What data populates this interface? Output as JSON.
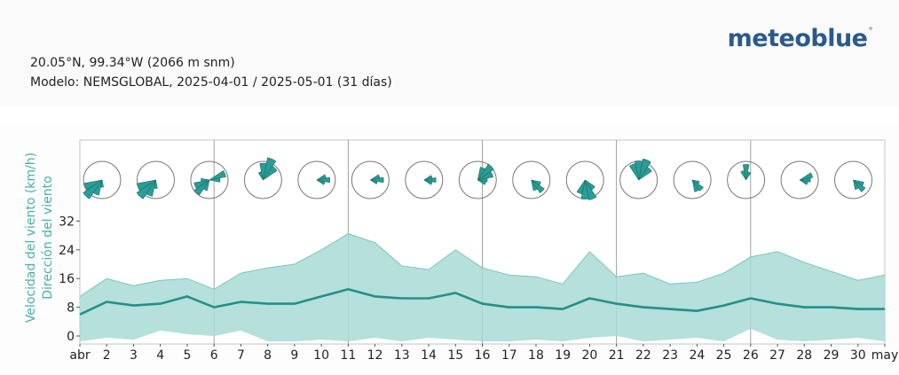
{
  "header": {
    "coordinates": "20.05°N, 99.34°W (2066 m snm)",
    "model": "Modelo: NEMSGLOBAL, 2025-04-01 / 2025-05-01 (31 días)",
    "logo_text": "meteoblue",
    "logo_mark": "°"
  },
  "colors": {
    "wind": "#2a9d96",
    "band": "#a8dad5",
    "line": "#248f89",
    "logo": "#2a5a8c",
    "ylabel": "#48b0a8"
  },
  "chart_data": {
    "type": "area",
    "ylabel": [
      "Velocidad del viento (km/h)",
      "Dirección del viento"
    ],
    "yticks": [
      0,
      8,
      16,
      24,
      32
    ],
    "ylim": [
      -2,
      34
    ],
    "grid": "vertical lines at days 6, 11, 16, 21, 26",
    "xtick_labels": [
      "abr",
      "2",
      "3",
      "4",
      "5",
      "6",
      "7",
      "8",
      "9",
      "10",
      "11",
      "12",
      "13",
      "14",
      "15",
      "16",
      "17",
      "18",
      "19",
      "20",
      "21",
      "22",
      "23",
      "24",
      "25",
      "26",
      "27",
      "28",
      "29",
      "30",
      "may"
    ],
    "x": [
      "2025-04-01",
      "2025-04-02",
      "2025-04-03",
      "2025-04-04",
      "2025-04-05",
      "2025-04-06",
      "2025-04-07",
      "2025-04-08",
      "2025-04-09",
      "2025-04-10",
      "2025-04-11",
      "2025-04-12",
      "2025-04-13",
      "2025-04-14",
      "2025-04-15",
      "2025-04-16",
      "2025-04-17",
      "2025-04-18",
      "2025-04-19",
      "2025-04-20",
      "2025-04-21",
      "2025-04-22",
      "2025-04-23",
      "2025-04-24",
      "2025-04-25",
      "2025-04-26",
      "2025-04-27",
      "2025-04-28",
      "2025-04-29",
      "2025-04-30",
      "2025-05-01"
    ],
    "series": [
      {
        "role": "max",
        "values": [
          11,
          16,
          14,
          15.5,
          16,
          13,
          17.5,
          19,
          20,
          24,
          28.5,
          26,
          19.5,
          18.5,
          24,
          19,
          17,
          16.5,
          14.5,
          23.5,
          16.5,
          17.5,
          14.5,
          15,
          17.5,
          22,
          23.5,
          20.5,
          18,
          15.5,
          17
        ]
      },
      {
        "role": "mean",
        "values": [
          6,
          9.5,
          8.5,
          9,
          11,
          8,
          9.5,
          9,
          9,
          11,
          13,
          11,
          10.5,
          10.5,
          12,
          9,
          8,
          8,
          7.5,
          10.5,
          9,
          8,
          7.5,
          7,
          8.5,
          10.5,
          9,
          8,
          8,
          7.5,
          7.5
        ]
      },
      {
        "role": "min",
        "values": [
          -1.5,
          -0.5,
          -1,
          1.5,
          0.5,
          0,
          1.5,
          -1.5,
          -1.5,
          -1,
          -1.5,
          -0.5,
          -1.5,
          -0.5,
          -1,
          -1.5,
          -1.5,
          -1,
          -1.5,
          -0.5,
          0,
          -1.5,
          -1,
          -0.5,
          -1.5,
          2,
          -1,
          -1.5,
          -1,
          -0.5,
          -1.5
        ]
      }
    ],
    "wind_roses": [
      {
        "day": 1,
        "sectors": [
          {
            "dir": 225,
            "r": 0.95
          },
          {
            "dir": 203,
            "r": 0.65
          },
          {
            "dir": 248,
            "r": 0.75
          },
          {
            "dir": 180,
            "r": 0.3
          }
        ]
      },
      {
        "day": 3,
        "sectors": [
          {
            "dir": 225,
            "r": 0.95
          },
          {
            "dir": 203,
            "r": 0.7
          },
          {
            "dir": 248,
            "r": 0.8
          },
          {
            "dir": 180,
            "r": 0.35
          }
        ]
      },
      {
        "day": 5,
        "sectors": [
          {
            "dir": 248,
            "r": 0.65
          },
          {
            "dir": 225,
            "r": 0.75
          },
          {
            "dir": 203,
            "r": 0.45
          },
          {
            "dir": 270,
            "r": 0.35
          },
          {
            "dir": 68,
            "r": 0.7
          },
          {
            "dir": 90,
            "r": 0.45
          }
        ]
      },
      {
        "day": 7,
        "sectors": [
          {
            "dir": 23,
            "r": 0.95
          },
          {
            "dir": 45,
            "r": 0.7
          },
          {
            "dir": 0,
            "r": 0.7
          },
          {
            "dir": 338,
            "r": 0.35
          }
        ]
      },
      {
        "day": 9,
        "sectors": [
          {
            "dir": 68,
            "r": 0.4
          },
          {
            "dir": 90,
            "r": 0.55
          },
          {
            "dir": 113,
            "r": 0.35
          }
        ]
      },
      {
        "day": 11,
        "sectors": [
          {
            "dir": 68,
            "r": 0.4
          },
          {
            "dir": 90,
            "r": 0.55
          },
          {
            "dir": 113,
            "r": 0.3
          }
        ]
      },
      {
        "day": 13,
        "sectors": [
          {
            "dir": 68,
            "r": 0.35
          },
          {
            "dir": 90,
            "r": 0.5
          },
          {
            "dir": 113,
            "r": 0.35
          }
        ]
      },
      {
        "day": 15,
        "sectors": [
          {
            "dir": 45,
            "r": 0.8
          },
          {
            "dir": 68,
            "r": 0.65
          },
          {
            "dir": 23,
            "r": 0.55
          },
          {
            "dir": 90,
            "r": 0.4
          },
          {
            "dir": 113,
            "r": 0.35
          }
        ]
      },
      {
        "day": 17,
        "sectors": [
          {
            "dir": 135,
            "r": 0.65
          },
          {
            "dir": 113,
            "r": 0.4
          },
          {
            "dir": 158,
            "r": 0.45
          }
        ]
      },
      {
        "day": 19,
        "sectors": [
          {
            "dir": 158,
            "r": 0.85
          },
          {
            "dir": 180,
            "r": 0.8
          },
          {
            "dir": 203,
            "r": 0.6
          },
          {
            "dir": 135,
            "r": 0.5
          }
        ]
      },
      {
        "day": 21,
        "sectors": [
          {
            "dir": 23,
            "r": 0.9
          },
          {
            "dir": 0,
            "r": 0.8
          },
          {
            "dir": 338,
            "r": 0.7
          },
          {
            "dir": 45,
            "r": 0.65
          }
        ]
      },
      {
        "day": 23,
        "sectors": [
          {
            "dir": 135,
            "r": 0.55
          },
          {
            "dir": 158,
            "r": 0.5
          },
          {
            "dir": 113,
            "r": 0.3
          }
        ]
      },
      {
        "day": 25,
        "sectors": [
          {
            "dir": 0,
            "r": 0.65
          },
          {
            "dir": 23,
            "r": 0.35
          },
          {
            "dir": 338,
            "r": 0.4
          }
        ]
      },
      {
        "day": 27,
        "sectors": [
          {
            "dir": 90,
            "r": 0.45
          },
          {
            "dir": 68,
            "r": 0.55
          },
          {
            "dir": 113,
            "r": 0.35
          }
        ]
      },
      {
        "day": 29,
        "sectors": [
          {
            "dir": 135,
            "r": 0.6
          },
          {
            "dir": 113,
            "r": 0.45
          },
          {
            "dir": 158,
            "r": 0.4
          }
        ]
      }
    ]
  }
}
